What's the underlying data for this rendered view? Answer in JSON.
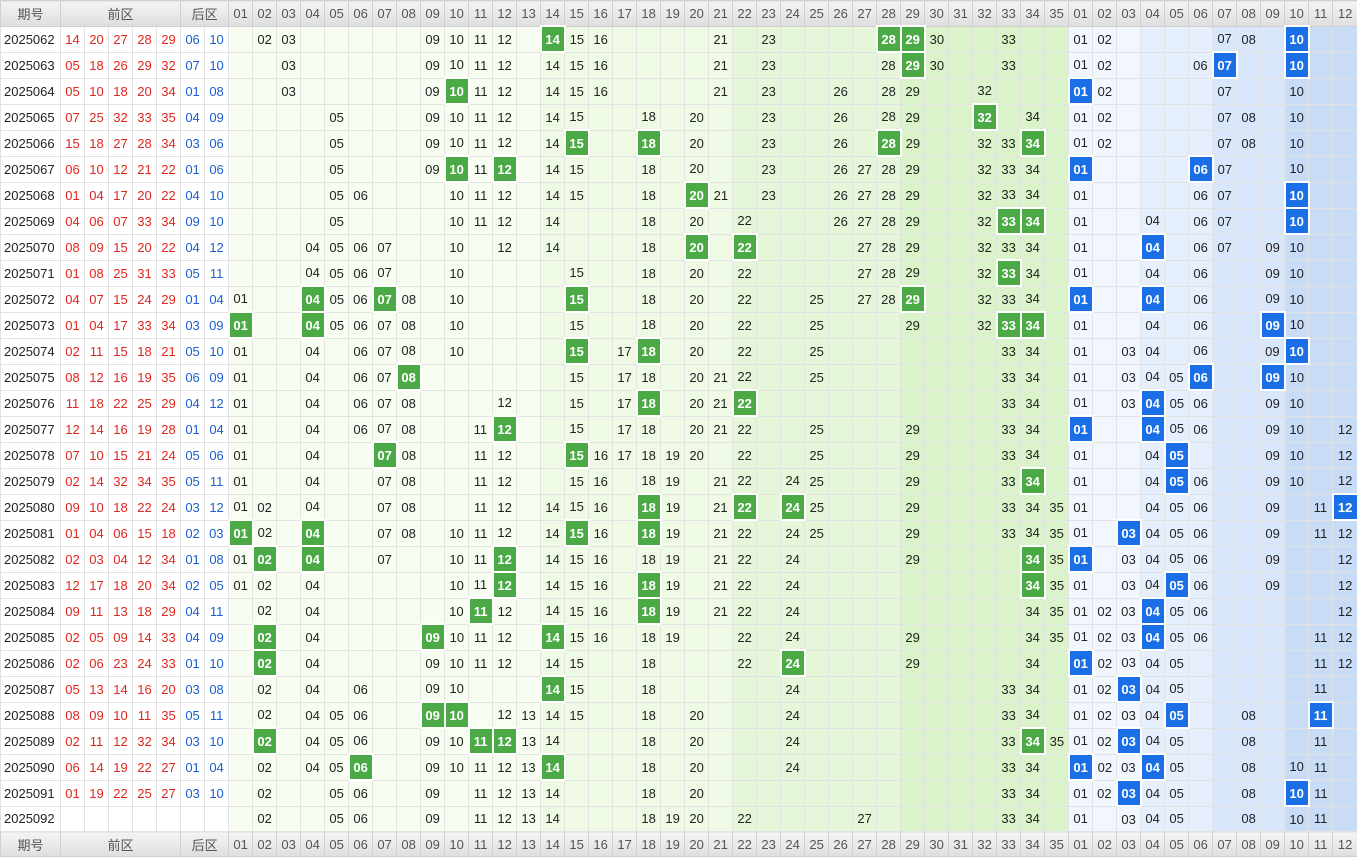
{
  "header": {
    "period": "期号",
    "front": "前区",
    "back": "后区",
    "front_cols": [
      "01",
      "02",
      "03",
      "04",
      "05",
      "06",
      "07",
      "08",
      "09",
      "10",
      "11",
      "12",
      "13",
      "14",
      "15",
      "16",
      "17",
      "18",
      "19",
      "20",
      "21",
      "22",
      "23",
      "24",
      "25",
      "26",
      "27",
      "28",
      "29",
      "30",
      "31",
      "32",
      "33",
      "34",
      "35"
    ],
    "back_cols": [
      "01",
      "02",
      "03",
      "04",
      "05",
      "06",
      "07",
      "08",
      "09",
      "10",
      "11",
      "12"
    ]
  },
  "rows": [
    {
      "period": "2025062",
      "front": [
        "14",
        "20",
        "27",
        "28",
        "29"
      ],
      "back": [
        "06",
        "10"
      ],
      "front_grid": [
        "02",
        "03",
        "09",
        "10",
        "11",
        "12",
        "14",
        "15",
        "16",
        "21",
        "23",
        "28",
        "29",
        "30",
        "33"
      ],
      "back_grid": [
        "01",
        "02",
        "07",
        "08",
        "10"
      ]
    },
    {
      "period": "2025063",
      "front": [
        "05",
        "18",
        "26",
        "29",
        "32"
      ],
      "back": [
        "07",
        "10"
      ],
      "front_grid": [
        "03",
        "09",
        "10",
        "11",
        "12",
        "14",
        "15",
        "16",
        "21",
        "23",
        "28",
        "29",
        "30",
        "33"
      ],
      "back_grid": [
        "01",
        "02",
        "06",
        "07",
        "10"
      ]
    },
    {
      "period": "2025064",
      "front": [
        "05",
        "10",
        "18",
        "20",
        "34"
      ],
      "back": [
        "01",
        "08"
      ],
      "front_grid": [
        "03",
        "09",
        "10",
        "11",
        "12",
        "14",
        "15",
        "16",
        "21",
        "23",
        "26",
        "28",
        "29",
        "32"
      ],
      "back_grid": [
        "01",
        "02",
        "07",
        "10"
      ]
    },
    {
      "period": "2025065",
      "front": [
        "07",
        "25",
        "32",
        "33",
        "35"
      ],
      "back": [
        "04",
        "09"
      ],
      "front_grid": [
        "05",
        "09",
        "10",
        "11",
        "12",
        "14",
        "15",
        "18",
        "20",
        "23",
        "26",
        "28",
        "29",
        "32",
        "34"
      ],
      "back_grid": [
        "01",
        "02",
        "07",
        "08",
        "10"
      ]
    },
    {
      "period": "2025066",
      "front": [
        "15",
        "18",
        "27",
        "28",
        "34"
      ],
      "back": [
        "03",
        "06"
      ],
      "front_grid": [
        "05",
        "09",
        "10",
        "11",
        "12",
        "14",
        "15",
        "18",
        "20",
        "23",
        "26",
        "28",
        "29",
        "32",
        "33",
        "34"
      ],
      "back_grid": [
        "01",
        "02",
        "07",
        "08",
        "10"
      ]
    },
    {
      "period": "2025067",
      "front": [
        "06",
        "10",
        "12",
        "21",
        "22"
      ],
      "back": [
        "01",
        "06"
      ],
      "front_grid": [
        "05",
        "09",
        "10",
        "11",
        "12",
        "14",
        "15",
        "18",
        "20",
        "23",
        "26",
        "27",
        "28",
        "29",
        "32",
        "33",
        "34"
      ],
      "back_grid": [
        "01",
        "06",
        "07",
        "10"
      ]
    },
    {
      "period": "2025068",
      "front": [
        "01",
        "04",
        "17",
        "20",
        "22"
      ],
      "back": [
        "04",
        "10"
      ],
      "front_grid": [
        "05",
        "06",
        "10",
        "11",
        "12",
        "14",
        "15",
        "18",
        "20",
        "21",
        "23",
        "26",
        "27",
        "28",
        "29",
        "32",
        "33",
        "34"
      ],
      "back_grid": [
        "01",
        "06",
        "07",
        "10"
      ]
    },
    {
      "period": "2025069",
      "front": [
        "04",
        "06",
        "07",
        "33",
        "34"
      ],
      "back": [
        "09",
        "10"
      ],
      "front_grid": [
        "05",
        "10",
        "11",
        "12",
        "14",
        "18",
        "20",
        "22",
        "26",
        "27",
        "28",
        "29",
        "32",
        "33",
        "34"
      ],
      "back_grid": [
        "01",
        "04",
        "06",
        "07",
        "10"
      ]
    },
    {
      "period": "2025070",
      "front": [
        "08",
        "09",
        "15",
        "20",
        "22"
      ],
      "back": [
        "04",
        "12"
      ],
      "front_grid": [
        "04",
        "05",
        "06",
        "07",
        "10",
        "12",
        "14",
        "18",
        "20",
        "22",
        "27",
        "28",
        "29",
        "32",
        "33",
        "34"
      ],
      "back_grid": [
        "01",
        "04",
        "06",
        "07",
        "09",
        "10"
      ]
    },
    {
      "period": "2025071",
      "front": [
        "01",
        "08",
        "25",
        "31",
        "33"
      ],
      "back": [
        "05",
        "11"
      ],
      "front_grid": [
        "04",
        "05",
        "06",
        "07",
        "10",
        "15",
        "18",
        "20",
        "22",
        "27",
        "28",
        "29",
        "32",
        "33",
        "34"
      ],
      "back_grid": [
        "01",
        "04",
        "06",
        "09",
        "10"
      ]
    },
    {
      "period": "2025072",
      "front": [
        "04",
        "07",
        "15",
        "24",
        "29"
      ],
      "back": [
        "01",
        "04"
      ],
      "front_grid": [
        "01",
        "04",
        "05",
        "06",
        "07",
        "08",
        "10",
        "15",
        "18",
        "20",
        "22",
        "25",
        "27",
        "28",
        "29",
        "32",
        "33",
        "34"
      ],
      "back_grid": [
        "01",
        "04",
        "06",
        "09",
        "10"
      ]
    },
    {
      "period": "2025073",
      "front": [
        "01",
        "04",
        "17",
        "33",
        "34"
      ],
      "back": [
        "03",
        "09"
      ],
      "front_grid": [
        "01",
        "04",
        "05",
        "06",
        "07",
        "08",
        "10",
        "15",
        "18",
        "20",
        "22",
        "25",
        "29",
        "32",
        "33",
        "34"
      ],
      "back_grid": [
        "01",
        "04",
        "06",
        "09",
        "10"
      ]
    },
    {
      "period": "2025074",
      "front": [
        "02",
        "11",
        "15",
        "18",
        "21"
      ],
      "back": [
        "05",
        "10"
      ],
      "front_grid": [
        "01",
        "04",
        "06",
        "07",
        "08",
        "10",
        "15",
        "17",
        "18",
        "20",
        "22",
        "25",
        "33",
        "34"
      ],
      "back_grid": [
        "01",
        "03",
        "04",
        "06",
        "09",
        "10"
      ]
    },
    {
      "period": "2025075",
      "front": [
        "08",
        "12",
        "16",
        "19",
        "35"
      ],
      "back": [
        "06",
        "09"
      ],
      "front_grid": [
        "01",
        "04",
        "06",
        "07",
        "08",
        "15",
        "17",
        "18",
        "20",
        "21",
        "22",
        "25",
        "33",
        "34"
      ],
      "back_grid": [
        "01",
        "03",
        "04",
        "05",
        "06",
        "09",
        "10"
      ]
    },
    {
      "period": "2025076",
      "front": [
        "11",
        "18",
        "22",
        "25",
        "29"
      ],
      "back": [
        "04",
        "12"
      ],
      "front_grid": [
        "01",
        "04",
        "06",
        "07",
        "08",
        "12",
        "15",
        "17",
        "18",
        "20",
        "21",
        "22",
        "33",
        "34"
      ],
      "back_grid": [
        "01",
        "03",
        "04",
        "05",
        "06",
        "09",
        "10"
      ]
    },
    {
      "period": "2025077",
      "front": [
        "12",
        "14",
        "16",
        "19",
        "28"
      ],
      "back": [
        "01",
        "04"
      ],
      "front_grid": [
        "01",
        "04",
        "06",
        "07",
        "08",
        "11",
        "12",
        "15",
        "17",
        "18",
        "20",
        "21",
        "22",
        "25",
        "29",
        "33",
        "34"
      ],
      "back_grid": [
        "01",
        "04",
        "05",
        "06",
        "09",
        "10",
        "12"
      ]
    },
    {
      "period": "2025078",
      "front": [
        "07",
        "10",
        "15",
        "21",
        "24"
      ],
      "back": [
        "05",
        "06"
      ],
      "front_grid": [
        "01",
        "04",
        "07",
        "08",
        "11",
        "12",
        "15",
        "16",
        "17",
        "18",
        "19",
        "20",
        "22",
        "25",
        "29",
        "33",
        "34"
      ],
      "back_grid": [
        "01",
        "04",
        "05",
        "09",
        "10",
        "12"
      ]
    },
    {
      "period": "2025079",
      "front": [
        "02",
        "14",
        "32",
        "34",
        "35"
      ],
      "back": [
        "05",
        "11"
      ],
      "front_grid": [
        "01",
        "04",
        "07",
        "08",
        "11",
        "12",
        "15",
        "16",
        "18",
        "19",
        "21",
        "22",
        "24",
        "25",
        "29",
        "33",
        "34"
      ],
      "back_grid": [
        "01",
        "04",
        "05",
        "06",
        "09",
        "10",
        "12"
      ]
    },
    {
      "period": "2025080",
      "front": [
        "09",
        "10",
        "18",
        "22",
        "24"
      ],
      "back": [
        "03",
        "12"
      ],
      "front_grid": [
        "01",
        "02",
        "04",
        "07",
        "08",
        "11",
        "12",
        "14",
        "15",
        "16",
        "18",
        "19",
        "21",
        "22",
        "24",
        "25",
        "29",
        "33",
        "34",
        "35"
      ],
      "back_grid": [
        "01",
        "04",
        "05",
        "06",
        "09",
        "11",
        "12"
      ]
    },
    {
      "period": "2025081",
      "front": [
        "01",
        "04",
        "06",
        "15",
        "18"
      ],
      "back": [
        "02",
        "03"
      ],
      "front_grid": [
        "01",
        "02",
        "04",
        "07",
        "08",
        "10",
        "11",
        "12",
        "14",
        "15",
        "16",
        "18",
        "19",
        "21",
        "22",
        "24",
        "25",
        "29",
        "33",
        "34",
        "35"
      ],
      "back_grid": [
        "01",
        "03",
        "04",
        "05",
        "06",
        "09",
        "11",
        "12"
      ]
    },
    {
      "period": "2025082",
      "front": [
        "02",
        "03",
        "04",
        "12",
        "34"
      ],
      "back": [
        "01",
        "08"
      ],
      "front_grid": [
        "01",
        "02",
        "04",
        "07",
        "10",
        "11",
        "12",
        "14",
        "15",
        "16",
        "18",
        "19",
        "21",
        "22",
        "24",
        "29",
        "34",
        "35"
      ],
      "back_grid": [
        "01",
        "03",
        "04",
        "05",
        "06",
        "09",
        "12"
      ]
    },
    {
      "period": "2025083",
      "front": [
        "12",
        "17",
        "18",
        "20",
        "34"
      ],
      "back": [
        "02",
        "05"
      ],
      "front_grid": [
        "01",
        "02",
        "04",
        "10",
        "11",
        "12",
        "14",
        "15",
        "16",
        "18",
        "19",
        "21",
        "22",
        "24",
        "34",
        "35"
      ],
      "back_grid": [
        "01",
        "03",
        "04",
        "05",
        "06",
        "09",
        "12"
      ]
    },
    {
      "period": "2025084",
      "front": [
        "09",
        "11",
        "13",
        "18",
        "29"
      ],
      "back": [
        "04",
        "11"
      ],
      "front_grid": [
        "02",
        "04",
        "10",
        "11",
        "12",
        "14",
        "15",
        "16",
        "18",
        "19",
        "21",
        "22",
        "24",
        "34",
        "35"
      ],
      "back_grid": [
        "01",
        "02",
        "03",
        "04",
        "05",
        "06",
        "12"
      ]
    },
    {
      "period": "2025085",
      "front": [
        "02",
        "05",
        "09",
        "14",
        "33"
      ],
      "back": [
        "04",
        "09"
      ],
      "front_grid": [
        "02",
        "04",
        "09",
        "10",
        "11",
        "12",
        "14",
        "15",
        "16",
        "18",
        "19",
        "22",
        "24",
        "29",
        "34",
        "35"
      ],
      "back_grid": [
        "01",
        "02",
        "03",
        "04",
        "05",
        "06",
        "11",
        "12"
      ]
    },
    {
      "period": "2025086",
      "front": [
        "02",
        "06",
        "23",
        "24",
        "33"
      ],
      "back": [
        "01",
        "10"
      ],
      "front_grid": [
        "02",
        "04",
        "09",
        "10",
        "11",
        "12",
        "14",
        "15",
        "18",
        "22",
        "24",
        "29",
        "34"
      ],
      "back_grid": [
        "01",
        "02",
        "03",
        "04",
        "05",
        "11",
        "12"
      ]
    },
    {
      "period": "2025087",
      "front": [
        "05",
        "13",
        "14",
        "16",
        "20"
      ],
      "back": [
        "03",
        "08"
      ],
      "front_grid": [
        "02",
        "04",
        "06",
        "09",
        "10",
        "14",
        "15",
        "18",
        "24",
        "33",
        "34"
      ],
      "back_grid": [
        "01",
        "02",
        "03",
        "04",
        "05",
        "11"
      ]
    },
    {
      "period": "2025088",
      "front": [
        "08",
        "09",
        "10",
        "11",
        "35"
      ],
      "back": [
        "05",
        "11"
      ],
      "front_grid": [
        "02",
        "04",
        "05",
        "06",
        "09",
        "10",
        "12",
        "13",
        "14",
        "15",
        "18",
        "20",
        "24",
        "33",
        "34"
      ],
      "back_grid": [
        "01",
        "02",
        "03",
        "04",
        "05",
        "08",
        "11"
      ]
    },
    {
      "period": "2025089",
      "front": [
        "02",
        "11",
        "12",
        "32",
        "34"
      ],
      "back": [
        "03",
        "10"
      ],
      "front_grid": [
        "02",
        "04",
        "05",
        "06",
        "09",
        "10",
        "11",
        "12",
        "13",
        "14",
        "18",
        "20",
        "24",
        "33",
        "34",
        "35"
      ],
      "back_grid": [
        "01",
        "02",
        "03",
        "04",
        "05",
        "08",
        "11"
      ]
    },
    {
      "period": "2025090",
      "front": [
        "06",
        "14",
        "19",
        "22",
        "27"
      ],
      "back": [
        "01",
        "04"
      ],
      "front_grid": [
        "02",
        "04",
        "05",
        "06",
        "09",
        "10",
        "11",
        "12",
        "13",
        "14",
        "18",
        "20",
        "24",
        "33",
        "34"
      ],
      "back_grid": [
        "01",
        "02",
        "03",
        "04",
        "05",
        "08",
        "10",
        "11"
      ]
    },
    {
      "period": "2025091",
      "front": [
        "01",
        "19",
        "22",
        "25",
        "27"
      ],
      "back": [
        "03",
        "10"
      ],
      "front_grid": [
        "02",
        "05",
        "06",
        "09",
        "11",
        "12",
        "13",
        "14",
        "18",
        "20",
        "33",
        "34"
      ],
      "back_grid": [
        "01",
        "02",
        "03",
        "04",
        "05",
        "08",
        "10",
        "11"
      ]
    },
    {
      "period": "2025092",
      "front": [],
      "back": [],
      "front_grid": [
        "02",
        "05",
        "06",
        "09",
        "11",
        "12",
        "13",
        "14",
        "18",
        "19",
        "20",
        "22",
        "27",
        "33",
        "34"
      ],
      "back_grid": [
        "01",
        "03",
        "04",
        "05",
        "08",
        "10",
        "11"
      ]
    }
  ]
}
